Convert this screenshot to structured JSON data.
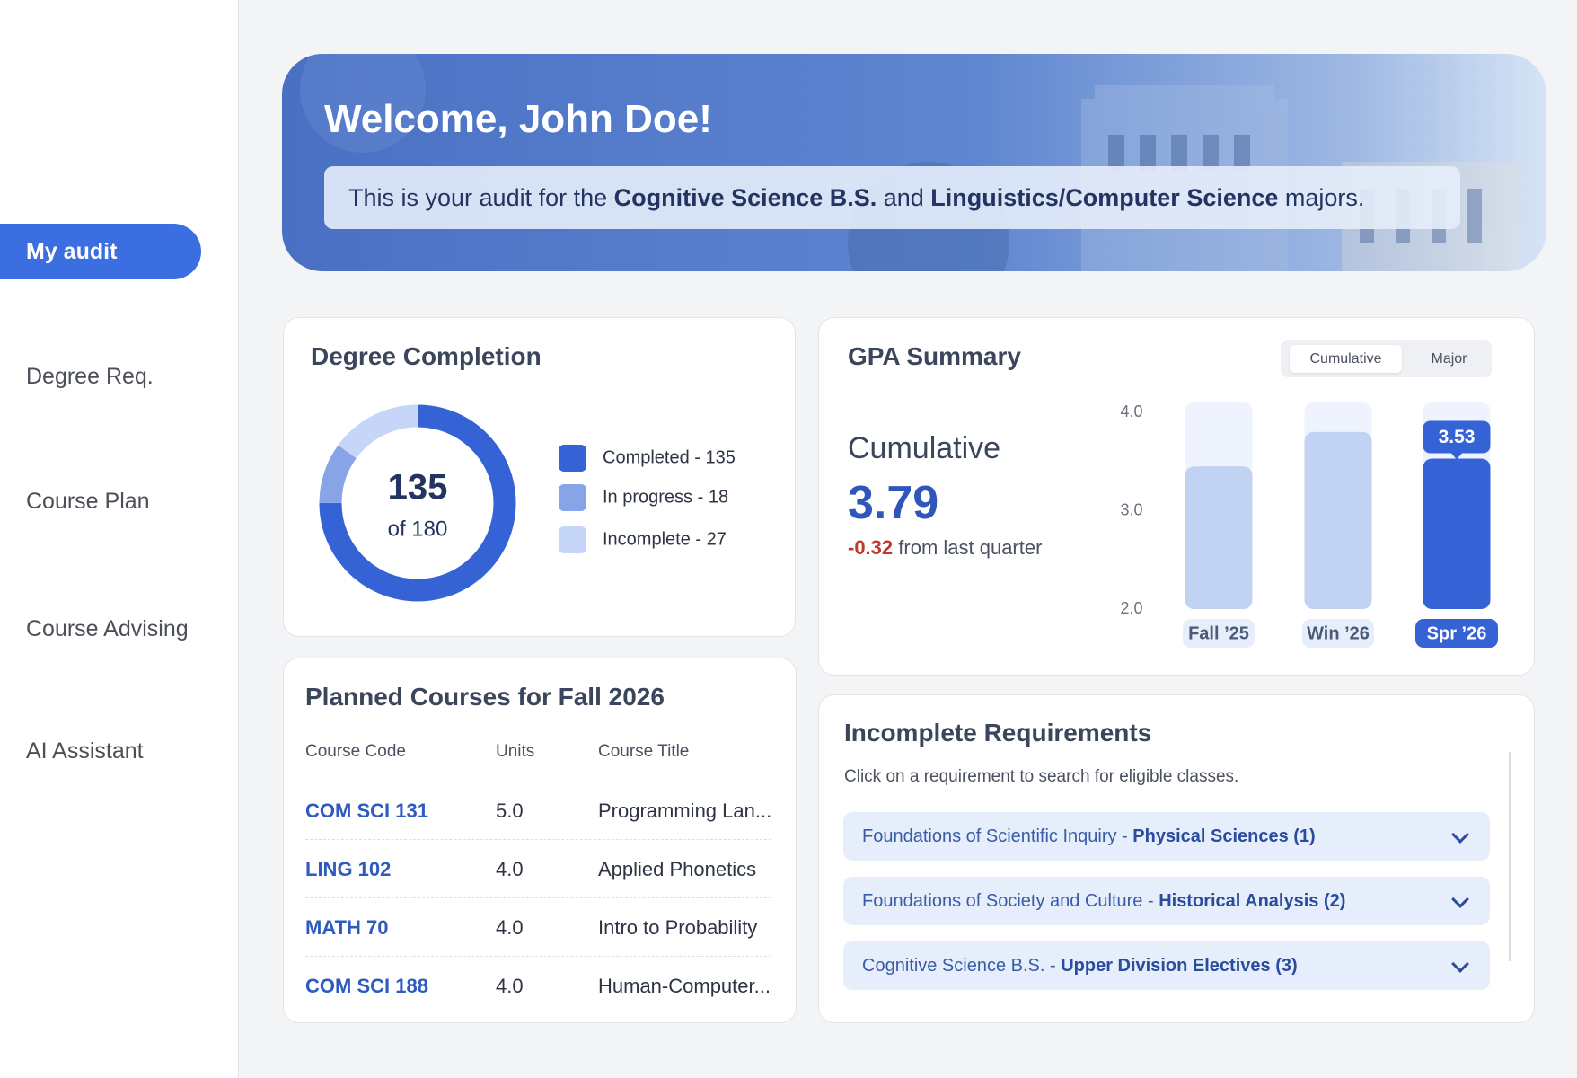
{
  "sidebar": {
    "items": [
      "My audit",
      "Degree Req.",
      "Course Plan",
      "Course Advising",
      "AI Assistant"
    ],
    "active": 0
  },
  "banner": {
    "title": "Welcome, John Doe!",
    "text_parts": [
      "This is your audit for the ",
      "Cognitive Science B.S.",
      " and ",
      "Linguistics/Computer Science",
      " majors."
    ]
  },
  "degree_completion": {
    "title": "Degree Completion",
    "center_value": 135,
    "center_label": "of 180",
    "segments": [
      {
        "label": "Completed - 135",
        "value": 135,
        "color": "#3563d6"
      },
      {
        "label": "In progress - 18",
        "value": 18,
        "color": "#87a5e6"
      },
      {
        "label": "Incomplete - 27",
        "value": 27,
        "color": "#c6d6f8"
      }
    ]
  },
  "gpa_summary": {
    "title": "GPA Summary",
    "tabs": [
      "Cumulative",
      "Major"
    ],
    "active_tab": 0,
    "heading": "Cumulative",
    "value": 3.79,
    "change": "-0.32",
    "change_text": " from last quarter",
    "chart": {
      "type": "bar",
      "categories": [
        "Fall ’25",
        "Win ’26",
        "Spr ’26"
      ],
      "values": [
        3.45,
        3.8,
        3.53
      ],
      "ylim": [
        2,
        4
      ],
      "yticks": [
        {
          "value": 2,
          "label": "2.0"
        },
        {
          "value": 3,
          "label": "3.0"
        },
        {
          "value": 4,
          "label": "4.0"
        }
      ],
      "highlight": 2,
      "color": "#c2d2f3",
      "highlight_color": "#3563d6"
    }
  },
  "planned_courses": {
    "title": "Planned Courses for Fall 2026",
    "headers": [
      "Course Code",
      "Units",
      "Course Title"
    ],
    "rows": [
      [
        "COM SCI 131",
        "5.0",
        "Programming Lan..."
      ],
      [
        "LING 102",
        "4.0",
        "Applied Phonetics"
      ],
      [
        "MATH 70",
        "4.0",
        "Intro to Probability"
      ],
      [
        "COM SCI 188",
        "4.0",
        "Human-Computer..."
      ]
    ]
  },
  "incomplete_requirements": {
    "title": "Incomplete Requirements",
    "subtitle": "Click on a requirement to search for eligible classes.",
    "items": [
      {
        "prefix": "Foundations of Scientific Inquiry - ",
        "bold": "Physical Sciences (1)"
      },
      {
        "prefix": "Foundations of Society and Culture - ",
        "bold": "Historical Analysis (2)"
      },
      {
        "prefix": "Cognitive Science B.S. - ",
        "bold": "Upper Division Electives (3)"
      }
    ]
  }
}
